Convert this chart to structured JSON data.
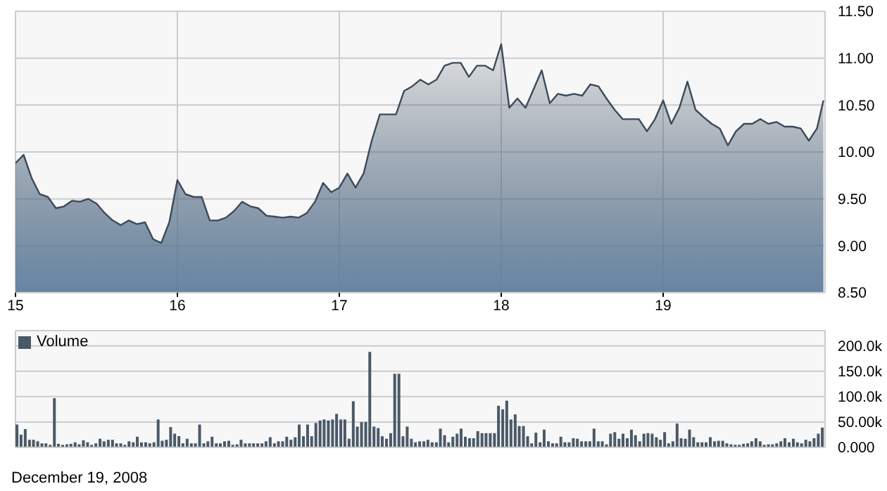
{
  "chart_data": [
    {
      "type": "area",
      "x": [
        15,
        15.05,
        15.1,
        15.15,
        15.2,
        15.25,
        15.3,
        15.35,
        15.4,
        15.45,
        15.5,
        15.55,
        15.6,
        15.65,
        15.7,
        15.75,
        15.8,
        15.85,
        15.9,
        15.95,
        16,
        16.05,
        16.1,
        16.15,
        16.2,
        16.25,
        16.3,
        16.35,
        16.4,
        16.45,
        16.5,
        16.55,
        16.6,
        16.65,
        16.7,
        16.75,
        16.8,
        16.85,
        16.9,
        16.95,
        17,
        17.05,
        17.1,
        17.15,
        17.2,
        17.25,
        17.3,
        17.35,
        17.4,
        17.45,
        17.5,
        17.55,
        17.6,
        17.65,
        17.7,
        17.75,
        17.8,
        17.85,
        17.9,
        17.95,
        18,
        18.05,
        18.1,
        18.15,
        18.2,
        18.25,
        18.3,
        18.35,
        18.4,
        18.45,
        18.5,
        18.55,
        18.6,
        18.65,
        18.7,
        18.75,
        18.8,
        18.85,
        18.9,
        18.95,
        19,
        19.05,
        19.1,
        19.15,
        19.2,
        19.25,
        19.3,
        19.35,
        19.4,
        19.45,
        19.5,
        19.55,
        19.6,
        19.65,
        19.7,
        19.75,
        19.8,
        19.85,
        19.9,
        19.95,
        19.99
      ],
      "series": [
        {
          "color": "#3d4a59",
          "values": [
            9.88,
            9.97,
            9.72,
            9.55,
            9.52,
            9.4,
            9.42,
            9.48,
            9.47,
            9.5,
            9.45,
            9.35,
            9.27,
            9.22,
            9.27,
            9.23,
            9.25,
            9.07,
            9.03,
            9.25,
            9.7,
            9.55,
            9.52,
            9.52,
            9.27,
            9.27,
            9.3,
            9.37,
            9.47,
            9.42,
            9.4,
            9.32,
            9.31,
            9.3,
            9.31,
            9.3,
            9.35,
            9.47,
            9.67,
            9.57,
            9.62,
            9.77,
            9.62,
            9.77,
            10.12,
            10.4,
            10.4,
            10.4,
            10.65,
            10.7,
            10.77,
            10.72,
            10.77,
            10.92,
            10.95,
            10.95,
            10.8,
            10.92,
            10.92,
            10.87,
            11.15,
            10.47,
            10.57,
            10.47,
            10.67,
            10.87,
            10.52,
            10.62,
            10.6,
            10.62,
            10.6,
            10.72,
            10.7,
            10.57,
            10.45,
            10.35,
            10.35,
            10.35,
            10.22,
            10.35,
            10.55,
            10.3,
            10.47,
            10.75,
            10.45,
            10.37,
            10.3,
            10.25,
            10.07,
            10.22,
            10.3,
            10.3,
            10.35,
            10.3,
            10.32,
            10.27,
            10.27,
            10.25,
            10.12,
            10.25,
            10.55
          ]
        }
      ],
      "xlim": [
        15,
        20
      ],
      "xticks": [
        15,
        16,
        17,
        18,
        19
      ],
      "ylim": [
        8.5,
        11.5
      ],
      "yticks": [
        {
          "value": 8.5,
          "label": "8.50"
        },
        {
          "value": 9,
          "label": "9.00"
        },
        {
          "value": 9.5,
          "label": "9.50"
        },
        {
          "value": 10,
          "label": "10.00"
        },
        {
          "value": 10.5,
          "label": "10.50"
        },
        {
          "value": 11,
          "label": "11.00"
        },
        {
          "value": 11.5,
          "label": "11.50"
        }
      ],
      "grid": true
    },
    {
      "type": "bar",
      "x": [
        15.013,
        15.038,
        15.064,
        15.09,
        15.115,
        15.141,
        15.167,
        15.192,
        15.218,
        15.244,
        15.269,
        15.295,
        15.321,
        15.346,
        15.372,
        15.397,
        15.423,
        15.449,
        15.474,
        15.5,
        15.526,
        15.551,
        15.577,
        15.603,
        15.628,
        15.654,
        15.679,
        15.705,
        15.731,
        15.756,
        15.782,
        15.808,
        15.833,
        15.859,
        15.885,
        15.91,
        15.936,
        15.962,
        15.987,
        16.013,
        16.038,
        16.064,
        16.09,
        16.115,
        16.141,
        16.167,
        16.192,
        16.218,
        16.244,
        16.269,
        16.295,
        16.321,
        16.346,
        16.372,
        16.397,
        16.423,
        16.449,
        16.474,
        16.5,
        16.526,
        16.551,
        16.577,
        16.603,
        16.628,
        16.654,
        16.679,
        16.705,
        16.731,
        16.756,
        16.782,
        16.808,
        16.833,
        16.859,
        16.885,
        16.91,
        16.936,
        16.962,
        16.987,
        17.013,
        17.038,
        17.064,
        17.09,
        17.115,
        17.141,
        17.167,
        17.192,
        17.218,
        17.244,
        17.269,
        17.295,
        17.321,
        17.346,
        17.372,
        17.397,
        17.423,
        17.449,
        17.474,
        17.5,
        17.526,
        17.551,
        17.577,
        17.603,
        17.628,
        17.654,
        17.679,
        17.705,
        17.731,
        17.756,
        17.782,
        17.808,
        17.833,
        17.859,
        17.885,
        17.91,
        17.936,
        17.962,
        17.987,
        18.013,
        18.038,
        18.064,
        18.09,
        18.115,
        18.141,
        18.167,
        18.192,
        18.218,
        18.244,
        18.269,
        18.295,
        18.321,
        18.346,
        18.372,
        18.397,
        18.423,
        18.449,
        18.474,
        18.5,
        18.526,
        18.551,
        18.577,
        18.603,
        18.628,
        18.654,
        18.679,
        18.705,
        18.731,
        18.756,
        18.782,
        18.808,
        18.833,
        18.859,
        18.885,
        18.91,
        18.936,
        18.962,
        18.987,
        19.013,
        19.038,
        19.064,
        19.09,
        19.115,
        19.141,
        19.167,
        19.192,
        19.218,
        19.244,
        19.269,
        19.295,
        19.321,
        19.346,
        19.372,
        19.397,
        19.423,
        19.449,
        19.474,
        19.5,
        19.526,
        19.551,
        19.577,
        19.603,
        19.628,
        19.654,
        19.679,
        19.705,
        19.731,
        19.756,
        19.782,
        19.808,
        19.833,
        19.859,
        19.885,
        19.91,
        19.936,
        19.962,
        19.987
      ],
      "series": [
        {
          "name": "Volume",
          "color": "#4a5968",
          "values": [
            45000,
            25000,
            36000,
            15000,
            15000,
            12000,
            8000,
            8000,
            5000,
            97000,
            7000,
            5000,
            6000,
            7000,
            10000,
            6000,
            14000,
            10000,
            5000,
            8000,
            17000,
            12000,
            15000,
            15000,
            8000,
            8000,
            5000,
            12000,
            10000,
            21000,
            10000,
            10000,
            8000,
            10000,
            55000,
            13000,
            15000,
            40000,
            27000,
            22000,
            8000,
            17000,
            8000,
            8000,
            45000,
            8000,
            12000,
            21000,
            8000,
            8000,
            12000,
            13000,
            5000,
            6000,
            15000,
            8000,
            8000,
            8000,
            8000,
            8000,
            12000,
            20000,
            8000,
            12000,
            12000,
            21000,
            15000,
            20000,
            45000,
            22000,
            45000,
            22000,
            48000,
            53000,
            55000,
            53000,
            55000,
            66000,
            55000,
            55000,
            17000,
            91000,
            41000,
            50000,
            50000,
            188000,
            41000,
            38000,
            22000,
            17000,
            28000,
            145000,
            145000,
            22000,
            41000,
            17000,
            10000,
            12000,
            12000,
            15000,
            10000,
            10000,
            37000,
            24000,
            10000,
            21000,
            27000,
            37000,
            21000,
            18000,
            18000,
            32000,
            28000,
            28000,
            28000,
            28000,
            82000,
            75000,
            92000,
            55000,
            65000,
            42000,
            42000,
            22000,
            8000,
            29000,
            10000,
            35000,
            12000,
            8000,
            8000,
            21000,
            10000,
            10000,
            18000,
            17000,
            12000,
            12000,
            12000,
            37000,
            12000,
            12000,
            6000,
            27000,
            30000,
            17000,
            27000,
            18000,
            35000,
            24000,
            12000,
            27000,
            28000,
            27000,
            20000,
            15000,
            30000,
            8000,
            12000,
            47000,
            18000,
            17000,
            35000,
            20000,
            10000,
            10000,
            10000,
            20000,
            12000,
            13000,
            13000,
            8000,
            6000,
            5000,
            5000,
            7000,
            8000,
            12000,
            18000,
            12000,
            5000,
            6000,
            6000,
            8000,
            12000,
            18000,
            10000,
            17000,
            10000,
            8000,
            15000,
            12000,
            18000,
            27000,
            39000
          ]
        }
      ],
      "xlim": [
        15,
        20
      ],
      "xticks": [
        15,
        16,
        17,
        18,
        19
      ],
      "tick_labels": "y",
      "ylim": [
        0,
        230000
      ],
      "yticks": [
        {
          "value": 0,
          "label": "0.000"
        },
        {
          "value": 50000,
          "label": "50.00k"
        },
        {
          "value": 100000,
          "label": "100.0k"
        },
        {
          "value": 150000,
          "label": "150.0k"
        },
        {
          "value": 200000,
          "label": "200.0k"
        }
      ],
      "grid": true,
      "legend": "top left",
      "annotations": [
        "December 19, 2008"
      ]
    }
  ]
}
